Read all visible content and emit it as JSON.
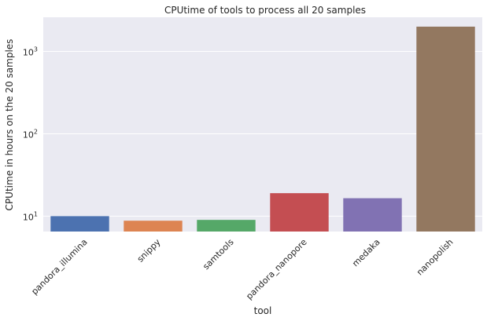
{
  "chart_data": {
    "type": "bar",
    "title": "CPUtime of tools to process all 20 samples",
    "xlabel": "tool",
    "ylabel": "CPUtime in hours on the 20 samples",
    "yscale": "log",
    "ylim": [
      6.5,
      2600
    ],
    "yticks": [
      10,
      100,
      1000
    ],
    "ytick_labels": [
      {
        "base": "10",
        "exp": "1"
      },
      {
        "base": "10",
        "exp": "2"
      },
      {
        "base": "10",
        "exp": "3"
      }
    ],
    "grid": true,
    "background": "#eaeaf2",
    "categories": [
      "pandora_illumina",
      "snippy",
      "samtools",
      "pandora_nanopore",
      "medaka",
      "nanopolish"
    ],
    "values": [
      10,
      8.8,
      9,
      19,
      16.5,
      2000
    ],
    "colors": [
      "#4c72b0",
      "#dd8452",
      "#55a868",
      "#c44e52",
      "#8172b3",
      "#937860"
    ]
  }
}
